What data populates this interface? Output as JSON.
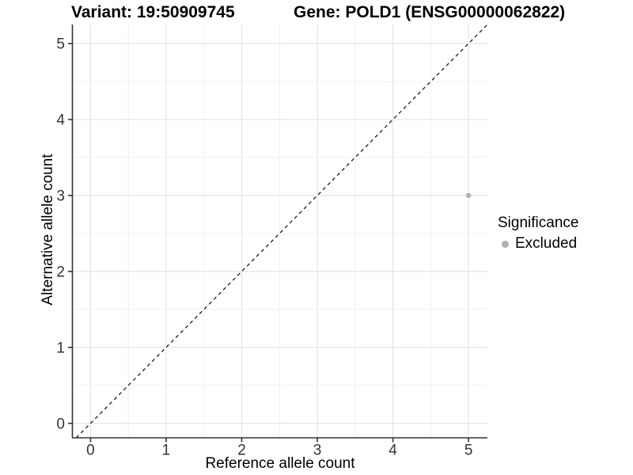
{
  "chart_data": {
    "type": "scatter",
    "title_left": "Variant: 19:50909745",
    "title_right": "Gene: POLD1 (ENSG00000062822)",
    "xlabel": "Reference allele count",
    "ylabel": "Alternative allele count",
    "xlim": [
      -0.24,
      5.25
    ],
    "ylim": [
      -0.19,
      5.25
    ],
    "x_ticks": [
      0,
      1,
      2,
      3,
      4,
      5
    ],
    "y_ticks": [
      0,
      1,
      2,
      3,
      4,
      5
    ],
    "grid": true,
    "minor_grid": true,
    "identity_line": {
      "show": true,
      "slope": 1,
      "intercept": 0,
      "style": "dashed",
      "color": "#1a1a1a"
    },
    "series": [
      {
        "name": "Excluded",
        "color": "#b0b0b0",
        "points": [
          {
            "x": 5,
            "y": 3
          }
        ]
      }
    ],
    "legend": {
      "position": "right",
      "title": "Significance",
      "entries": [
        {
          "label": "Excluded",
          "color": "#b0b0b0",
          "marker": "circle"
        }
      ]
    }
  },
  "colors": {
    "excluded_point": "#b0b0b0",
    "axis_line": "#333333",
    "major_grid": "#e4e4e4",
    "minor_grid": "#f0f0f0",
    "background": "#ffffff"
  }
}
